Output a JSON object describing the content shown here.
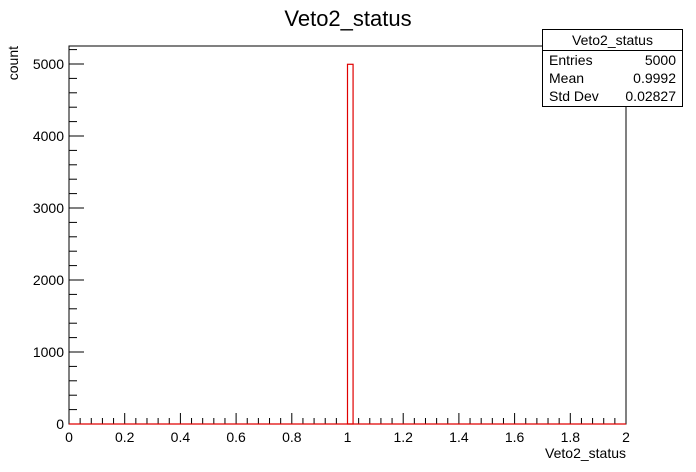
{
  "chart_data": {
    "type": "bar",
    "title": "Veto2_status",
    "xlabel": "Veto2_status",
    "ylabel": "count",
    "xlim": [
      0,
      2
    ],
    "ylim": [
      0,
      5250
    ],
    "x_ticks": [
      "0",
      "0.2",
      "0.4",
      "0.6",
      "0.8",
      "1",
      "1.2",
      "1.4",
      "1.6",
      "1.8",
      "2"
    ],
    "y_ticks": [
      "0",
      "1000",
      "2000",
      "3000",
      "4000",
      "5000"
    ],
    "bins": 100,
    "series": [
      {
        "bins": [
          {
            "x_low": 1.0,
            "x_high": 1.02,
            "count": 4996
          }
        ]
      }
    ],
    "line_color": "#e00000",
    "grid": false
  },
  "stats_box": {
    "title": "Veto2_status",
    "rows": [
      {
        "label": "Entries",
        "value": "5000"
      },
      {
        "label": "Mean",
        "value": "0.9992"
      },
      {
        "label": "Std Dev",
        "value": "0.02827"
      }
    ]
  }
}
